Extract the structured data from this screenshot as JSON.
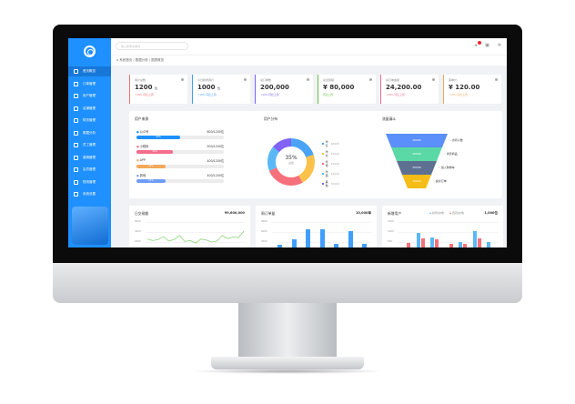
{
  "sidebar": {
    "items": [
      {
        "label": "首页概览"
      },
      {
        "label": "订单管理"
      },
      {
        "label": "用户管理"
      },
      {
        "label": "店铺管理"
      },
      {
        "label": "财务管理"
      },
      {
        "label": "数据分析"
      },
      {
        "label": "员工管理"
      },
      {
        "label": "营销管理"
      },
      {
        "label": "会员管理"
      },
      {
        "label": "物流管理"
      },
      {
        "label": "系统设置"
      }
    ]
  },
  "header": {
    "search_placeholder": "输入搜索关键词",
    "notification_count": "8"
  },
  "breadcrumb": [
    "系统首页",
    "数据分析",
    "图表概览"
  ],
  "colors": {
    "sidebar": "#1e90ff",
    "red": "#f56c6c",
    "blue": "#409eff",
    "purple": "#7b61ff",
    "green": "#67c23a",
    "orange": "#f5a75a"
  },
  "cards": [
    {
      "title": "用户总数",
      "value": "1200",
      "unit": "位",
      "sub": "↑10% 同比上周",
      "color": "#f56c6c"
    },
    {
      "title": "今日新增用户",
      "value": "1000",
      "unit": "位",
      "sub": "↑10% 同比上周",
      "color": "#409eff"
    },
    {
      "title": "总订单数",
      "value": "200,000",
      "unit": "",
      "sub": "↑10% 同比上周",
      "color": "#7b61ff"
    },
    {
      "title": "总交易额",
      "value": "¥ 80,000",
      "unit": "",
      "sub": "同比上周",
      "color": "#67c23a"
    },
    {
      "title": "总订单金额",
      "value": "24,200.00",
      "unit": "",
      "sub": "↓20% 同比上周",
      "color": "#f56c8c"
    },
    {
      "title": "客单价",
      "value": "¥ 120.00",
      "unit": "",
      "sub": "↑10% 同比上周",
      "color": "#f5a75a"
    }
  ],
  "progress": {
    "title": "用户来源",
    "items": [
      {
        "label": "公众号",
        "value": "600/1200",
        "unit": "位",
        "percent": 50,
        "color": "#1e90ff"
      },
      {
        "label": "小程序",
        "value": "500/1200",
        "unit": "位",
        "percent": 42,
        "color": "#f56c8c"
      },
      {
        "label": "APP",
        "value": "400/1200",
        "unit": "位",
        "percent": 33,
        "color": "#f5a75a"
      },
      {
        "label": "其他",
        "value": "400/1200",
        "unit": "位",
        "percent": 33,
        "color": "#6f9cf5"
      }
    ]
  },
  "donut": {
    "title": "用户分布",
    "center_value": "35%",
    "center_label": "占比",
    "items": [
      {
        "label": "华东",
        "value": "10000",
        "color": "#4aa3f5",
        "share": 20
      },
      {
        "label": "华北",
        "value": "10000",
        "color": "#fbc14a",
        "share": 22
      },
      {
        "label": "华南",
        "value": "10000",
        "color": "#f5707a",
        "share": 27
      },
      {
        "label": "华西",
        "value": "10000",
        "color": "#5ab8f7",
        "share": 17
      },
      {
        "label": "其他",
        "value": "10000",
        "color": "#8162f5",
        "share": 14
      }
    ]
  },
  "funnel": {
    "title": "流量漏斗",
    "items": [
      {
        "value": "20000",
        "label": "访问人数",
        "color": "#5b8ff9"
      },
      {
        "value": "20000",
        "label": "浏览商品",
        "color": "#5ad8a6"
      },
      {
        "value": "20000",
        "label": "加入购物车",
        "color": "#5d7092"
      },
      {
        "value": "15000",
        "label": "提交订单",
        "color": "#f6bd16"
      }
    ]
  },
  "chart_data": [
    {
      "type": "line",
      "title": "日交易额",
      "total": "¥9,600,000",
      "yticks": [
        "6000",
        "4000",
        "2000"
      ],
      "values": [
        2600,
        2300,
        2500,
        3100,
        2200,
        2500,
        3300,
        2100,
        2300,
        1800,
        2600,
        2400,
        2000,
        2200,
        3300,
        2700,
        3000,
        2900,
        4200
      ],
      "color": "#8fd67a"
    },
    {
      "type": "bar",
      "title": "周订单量",
      "total": "10,000单",
      "yticks": [
        "9000",
        "6000",
        "3000"
      ],
      "values": [
        2100,
        3900,
        6700,
        6700,
        2400,
        6300,
        2500
      ],
      "color": "#409eff"
    },
    {
      "type": "bar",
      "title": "新增用户",
      "total": "1,000位",
      "yticks": [
        "1500",
        "1000",
        "500"
      ],
      "series": [
        {
          "name": "新增用户数",
          "values": [
            0,
            950,
            750,
            0,
            500,
            1050,
            500
          ],
          "color": "#5ab8f7"
        },
        {
          "name": "活跃用户数",
          "values": [
            450,
            700,
            650,
            400,
            400,
            700,
            150
          ],
          "color": "#f5707a"
        }
      ]
    }
  ]
}
